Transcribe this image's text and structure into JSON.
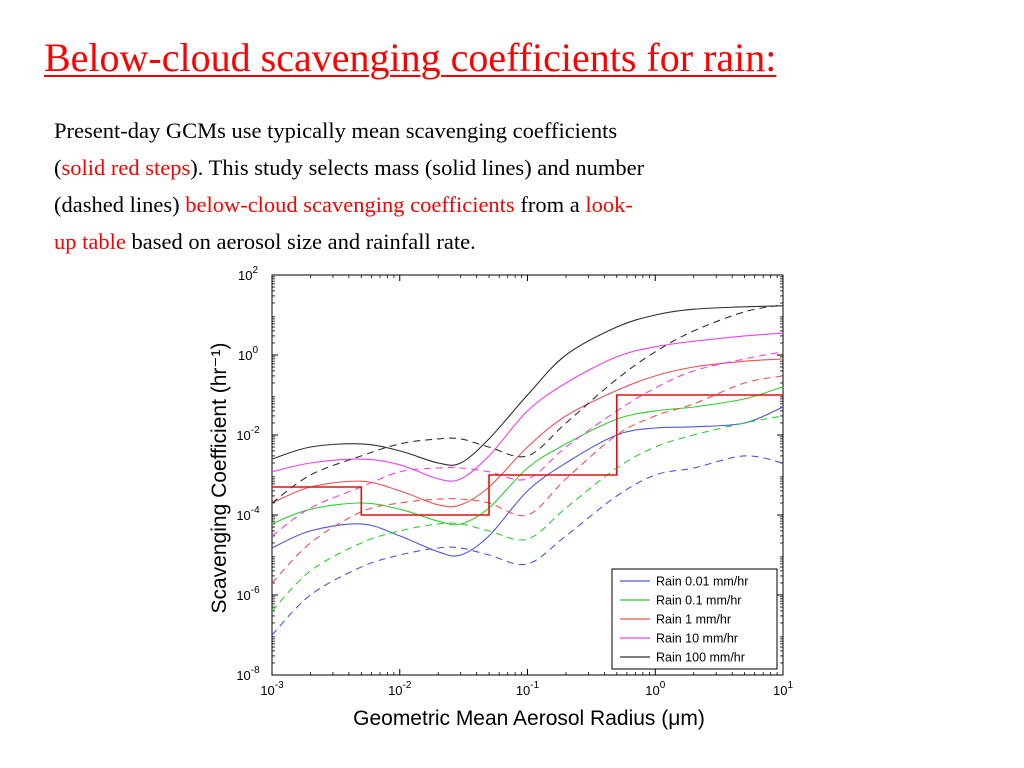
{
  "colors": {
    "title": "#ff0000",
    "highlight": "#ff0000",
    "text": "#000000",
    "rain_0_01": "#4b56e0",
    "rain_0_1": "#2fcf2f",
    "rain_1": "#f25050",
    "rain_10": "#f040f0",
    "rain_100": "#303030",
    "steps": "#e01010"
  },
  "slide": {
    "title": "Below-cloud scavenging coefficients for rain:",
    "line1": "Present-day GCMs use typically mean scavenging coefficients",
    "line2_paren_open": "(",
    "line2_highlight": "solid red steps",
    "line2_rest": "). This study selects mass (solid lines) and number",
    "line3_start": "(dashed lines) ",
    "line3_highlight": "below-cloud scavenging coefficients",
    "line3_middle": " from a ",
    "line3_highlight2": "look-",
    "line4_highlight": "up table",
    "line4_rest": " based on aerosol size and rainfall rate."
  },
  "chart_data": {
    "type": "line",
    "xlabel": "Geometric Mean Aerosol Radius (μm)",
    "ylabel": "Scavenging Coefficient (hr⁻¹)",
    "x_scale": "log",
    "y_scale": "log",
    "xlim": [
      0.001,
      10
    ],
    "ylim": [
      1e-08,
      100
    ],
    "x_ticks": [
      {
        "value": 0.001,
        "base": "10",
        "exp": "-3"
      },
      {
        "value": 0.01,
        "base": "10",
        "exp": "-2"
      },
      {
        "value": 0.1,
        "base": "10",
        "exp": "-1"
      },
      {
        "value": 1,
        "base": "10",
        "exp": "0"
      },
      {
        "value": 10,
        "base": "10",
        "exp": "1"
      }
    ],
    "y_ticks": [
      {
        "value": 1e-08,
        "base": "10",
        "exp": "-8"
      },
      {
        "value": 1e-06,
        "base": "10",
        "exp": "-6"
      },
      {
        "value": 0.0001,
        "base": "10",
        "exp": "-4"
      },
      {
        "value": 0.01,
        "base": "10",
        "exp": "-2"
      },
      {
        "value": 1,
        "base": "10",
        "exp": "0"
      },
      {
        "value": 100,
        "base": "10",
        "exp": "2"
      }
    ],
    "legend_position": "bottom-right",
    "x": [
      0.001,
      0.002,
      0.005,
      0.01,
      0.02,
      0.03,
      0.05,
      0.1,
      0.2,
      0.5,
      1,
      2,
      5,
      10
    ],
    "series": [
      {
        "name": "Rain 0.01 mm/hr",
        "style": "mass",
        "color_key": "rain_0_01",
        "values": [
          1.5e-05,
          4e-05,
          6e-05,
          3e-05,
          1.2e-05,
          1e-05,
          3e-05,
          0.0004,
          0.002,
          0.01,
          0.015,
          0.016,
          0.02,
          0.05
        ]
      },
      {
        "name": "Rain 0.01 mm/hr",
        "style": "number",
        "color_key": "rain_0_01",
        "values": [
          1e-07,
          1e-06,
          5e-06,
          1e-05,
          1.5e-05,
          1.5e-05,
          1e-05,
          6e-06,
          3e-05,
          0.0003,
          0.001,
          0.0015,
          0.003,
          0.002
        ]
      },
      {
        "name": "Rain 0.1 mm/hr",
        "style": "mass",
        "color_key": "rain_0_1",
        "values": [
          6e-05,
          0.00014,
          0.0002,
          0.00014,
          7e-05,
          6e-05,
          0.00015,
          0.0015,
          0.006,
          0.025,
          0.04,
          0.05,
          0.08,
          0.16
        ]
      },
      {
        "name": "Rain 0.1 mm/hr",
        "style": "number",
        "color_key": "rain_0_1",
        "values": [
          4e-07,
          4e-06,
          2e-05,
          4e-05,
          6e-05,
          6e-05,
          4e-05,
          2.5e-05,
          0.00015,
          0.0015,
          0.005,
          0.01,
          0.02,
          0.03
        ]
      },
      {
        "name": "Rain 1 mm/hr",
        "style": "mass",
        "color_key": "rain_1",
        "values": [
          0.0002,
          0.0005,
          0.0007,
          0.0004,
          0.00018,
          0.00018,
          0.0005,
          0.005,
          0.03,
          0.13,
          0.3,
          0.5,
          0.7,
          0.8
        ]
      },
      {
        "name": "Rain 1 mm/hr",
        "style": "number",
        "color_key": "rain_1",
        "values": [
          2e-06,
          2e-05,
          0.00012,
          0.0002,
          0.00025,
          0.00025,
          0.0002,
          0.0001,
          0.0008,
          0.01,
          0.03,
          0.06,
          0.2,
          0.3
        ]
      },
      {
        "name": "Rain 10 mm/hr",
        "style": "mass",
        "color_key": "rain_10",
        "values": [
          0.0012,
          0.002,
          0.0025,
          0.0018,
          0.0008,
          0.0008,
          0.003,
          0.04,
          0.2,
          0.9,
          1.6,
          2.2,
          3,
          3.5
        ]
      },
      {
        "name": "Rain 10 mm/hr",
        "style": "number",
        "color_key": "rain_10",
        "values": [
          3e-05,
          0.00015,
          0.0005,
          0.0012,
          0.0015,
          0.0015,
          0.0012,
          0.0008,
          0.005,
          0.04,
          0.15,
          0.4,
          0.8,
          1.2
        ]
      },
      {
        "name": "Rain 100 mm/hr",
        "style": "mass",
        "color_key": "rain_100",
        "values": [
          0.0025,
          0.005,
          0.006,
          0.004,
          0.002,
          0.002,
          0.008,
          0.1,
          1,
          5,
          10,
          14,
          16,
          17
        ]
      },
      {
        "name": "Rain 100 mm/hr",
        "style": "number",
        "color_key": "rain_100",
        "values": [
          0.0002,
          0.001,
          0.003,
          0.006,
          0.008,
          0.008,
          0.005,
          0.003,
          0.02,
          0.25,
          1.2,
          4,
          12,
          18
        ]
      }
    ],
    "steps": {
      "color_key": "steps",
      "segments": [
        {
          "x0": 0.001,
          "x1": 0.005,
          "y": 0.0005
        },
        {
          "x0": 0.005,
          "x1": 0.05,
          "y": 0.0001
        },
        {
          "x0": 0.05,
          "x1": 0.5,
          "y": 0.001
        },
        {
          "x0": 0.5,
          "x1": 10,
          "y": 0.1
        }
      ]
    },
    "legend": [
      {
        "label": "Rain 0.01 mm/hr",
        "color_key": "rain_0_01"
      },
      {
        "label": " Rain 0.1 mm/hr",
        "color_key": "rain_0_1"
      },
      {
        "label": "Rain 1 mm/hr",
        "color_key": "rain_1"
      },
      {
        "label": "Rain 10 mm/hr",
        "color_key": "rain_10"
      },
      {
        "label": "Rain 100 mm/hr",
        "color_key": "rain_100"
      }
    ]
  }
}
